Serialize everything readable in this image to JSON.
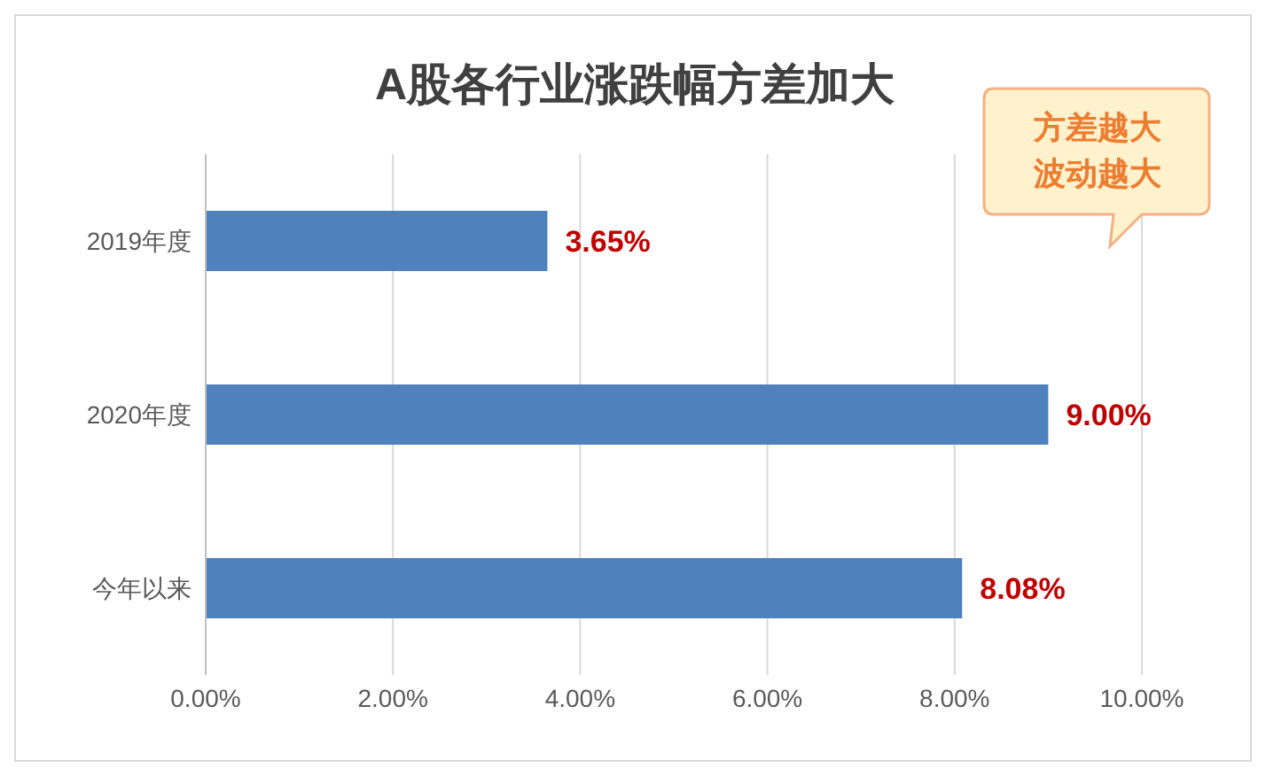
{
  "chart_data": {
    "type": "bar",
    "orientation": "horizontal",
    "title": "A股各行业涨跌幅方差加大",
    "categories": [
      "2019年度",
      "2020年度",
      "今年以来"
    ],
    "values": [
      3.65,
      9.0,
      8.08
    ],
    "value_labels": [
      "3.65%",
      "9.00%",
      "8.08%"
    ],
    "color": "#4f81bd",
    "xlim": [
      0,
      10
    ],
    "xticks": [
      {
        "value": 0,
        "label": "0.00%"
      },
      {
        "value": 2,
        "label": "2.00%"
      },
      {
        "value": 4,
        "label": "4.00%"
      },
      {
        "value": 6,
        "label": "6.00%"
      },
      {
        "value": 8,
        "label": "8.00%"
      },
      {
        "value": 10,
        "label": "10.00%"
      }
    ],
    "grid": "x",
    "annotations": [
      "方差越大波动越大"
    ]
  }
}
